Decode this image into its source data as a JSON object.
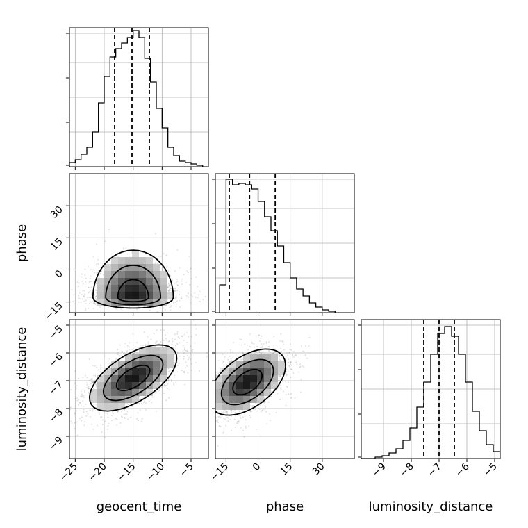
{
  "chart_data": {
    "type": "corner",
    "parameters": [
      {
        "key": "geocent_time",
        "label": "geocent_time",
        "range": [
          -26,
          -2
        ],
        "ticks": [
          -25,
          -20,
          -15,
          -10,
          -5
        ],
        "tick_labels": [
          "−25",
          "−20",
          "−15",
          "−10",
          "−5"
        ],
        "quantiles": [
          -18.2,
          -15.2,
          -12.2
        ]
      },
      {
        "key": "phase",
        "label": "phase",
        "range": [
          -20,
          45
        ],
        "ticks": [
          -15,
          0,
          15,
          30
        ],
        "tick_labels": [
          "−15",
          "0",
          "15",
          "30"
        ],
        "quantiles": [
          -13.5,
          -4,
          8
        ]
      },
      {
        "key": "luminosity_distance",
        "label": "luminosity_distance",
        "range": [
          -9.8,
          -4.8
        ],
        "ticks": [
          -9,
          -8,
          -7,
          -6,
          -5
        ],
        "tick_labels": [
          "−9",
          "−8",
          "−7",
          "−6",
          "−5"
        ],
        "quantiles": [
          -7.55,
          -7.0,
          -6.45
        ]
      }
    ],
    "histograms": [
      {
        "param": "geocent_time",
        "bin_start": -26,
        "bin_width": 1,
        "counts": [
          0.03,
          0.05,
          0.09,
          0.14,
          0.25,
          0.46,
          0.65,
          0.79,
          0.85,
          0.89,
          0.93,
          0.98,
          0.93,
          0.78,
          0.61,
          0.42,
          0.28,
          0.14,
          0.08,
          0.04,
          0.03,
          0.02,
          0.01
        ]
      },
      {
        "param": "phase",
        "bin_start": -18,
        "bin_width": 3,
        "counts": [
          0.2,
          0.96,
          0.92,
          0.93,
          0.92,
          0.89,
          0.8,
          0.69,
          0.59,
          0.48,
          0.36,
          0.25,
          0.17,
          0.12,
          0.07,
          0.04,
          0.02,
          0.01
        ]
      },
      {
        "param": "luminosity_distance",
        "bin_start": -9.8,
        "bin_width": 0.25,
        "counts": [
          0.0,
          0.0,
          0.01,
          0.02,
          0.04,
          0.07,
          0.13,
          0.22,
          0.37,
          0.55,
          0.75,
          0.9,
          0.95,
          0.88,
          0.75,
          0.55,
          0.34,
          0.2,
          0.1,
          0.05,
          0.02
        ]
      }
    ],
    "pairs": [
      {
        "x": "geocent_time",
        "y": "phase",
        "peak": [
          -15,
          -13
        ],
        "sd": [
          3.5,
          7
        ],
        "rho": 0,
        "skew": "down"
      },
      {
        "x": "geocent_time",
        "y": "luminosity_distance",
        "peak": [
          -15,
          -6.9
        ],
        "sd": [
          3.8,
          0.6
        ],
        "rho": 0.6
      },
      {
        "x": "phase",
        "y": "luminosity_distance",
        "peak": [
          -5,
          -7.05
        ],
        "sd": [
          9,
          0.6
        ],
        "rho": 0.5
      }
    ],
    "grid": true,
    "contour_levels": 3,
    "scatter": true
  }
}
